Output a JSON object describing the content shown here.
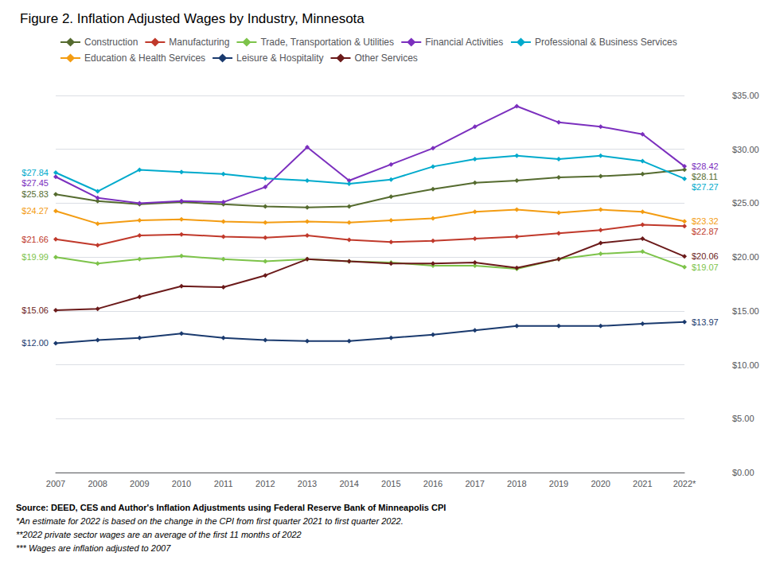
{
  "chart_data": {
    "type": "line",
    "title": "Figure 2. Inflation Adjusted Wages by Industry, Minnesota",
    "categories": [
      "2007",
      "2008",
      "2009",
      "2010",
      "2011",
      "2012",
      "2013",
      "2014",
      "2015",
      "2016",
      "2017",
      "2018",
      "2019",
      "2020",
      "2021",
      "2022*"
    ],
    "series": [
      {
        "name": "Construction",
        "color": "#556B2F",
        "values": [
          25.83,
          25.2,
          24.9,
          25.1,
          24.9,
          24.7,
          24.6,
          24.7,
          25.6,
          26.3,
          26.9,
          27.1,
          27.4,
          27.5,
          27.7,
          28.11
        ],
        "value_labels": [
          "$25.83",
          null,
          null,
          null,
          null,
          null,
          null,
          null,
          null,
          null,
          null,
          null,
          null,
          null,
          null,
          "$28.11"
        ]
      },
      {
        "name": "Manufacturing",
        "color": "#C0392B",
        "values": [
          21.66,
          21.1,
          22.0,
          22.1,
          21.9,
          21.8,
          22.0,
          21.6,
          21.4,
          21.5,
          21.7,
          21.9,
          22.2,
          22.5,
          23.0,
          22.87
        ],
        "value_labels": [
          "$21.66",
          null,
          null,
          null,
          null,
          null,
          null,
          null,
          null,
          null,
          null,
          null,
          null,
          null,
          null,
          "$22.87"
        ]
      },
      {
        "name": "Trade, Transportation & Utilities",
        "color": "#7DC34A",
        "values": [
          19.99,
          19.4,
          19.8,
          20.1,
          19.8,
          19.6,
          19.8,
          19.6,
          19.5,
          19.2,
          19.2,
          18.9,
          19.8,
          20.3,
          20.5,
          19.07
        ],
        "value_labels": [
          "$19.99",
          null,
          null,
          null,
          null,
          null,
          null,
          null,
          null,
          null,
          null,
          null,
          null,
          null,
          null,
          "$19.07"
        ]
      },
      {
        "name": "Financial Activities",
        "color": "#7B2FBE",
        "values": [
          27.45,
          25.5,
          25.0,
          25.2,
          25.1,
          26.5,
          30.2,
          27.1,
          28.6,
          30.1,
          32.1,
          34.0,
          32.5,
          32.1,
          31.4,
          28.42
        ],
        "value_labels": [
          "$27.45",
          null,
          null,
          null,
          null,
          null,
          null,
          null,
          null,
          null,
          null,
          null,
          null,
          null,
          null,
          "$28.42"
        ]
      },
      {
        "name": "Professional & Business Services",
        "color": "#00AACC",
        "values": [
          27.84,
          26.1,
          28.1,
          27.9,
          27.7,
          27.3,
          27.1,
          26.8,
          27.2,
          28.4,
          29.1,
          29.4,
          29.1,
          29.4,
          28.9,
          27.27
        ],
        "value_labels": [
          "$27.84",
          null,
          null,
          null,
          null,
          null,
          null,
          null,
          null,
          null,
          null,
          null,
          null,
          null,
          null,
          "$27.27"
        ]
      },
      {
        "name": "Education & Health Services",
        "color": "#F39C12",
        "values": [
          24.27,
          23.1,
          23.4,
          23.5,
          23.3,
          23.2,
          23.3,
          23.2,
          23.4,
          23.6,
          24.2,
          24.4,
          24.1,
          24.4,
          24.2,
          23.32
        ],
        "value_labels": [
          "$24.27",
          null,
          null,
          null,
          null,
          null,
          null,
          null,
          null,
          null,
          null,
          null,
          null,
          null,
          null,
          "$23.32"
        ]
      },
      {
        "name": "Leisure & Hospitality",
        "color": "#1A3A6E",
        "values": [
          12.0,
          12.3,
          12.5,
          12.9,
          12.5,
          12.3,
          12.2,
          12.2,
          12.5,
          12.8,
          13.2,
          13.6,
          13.6,
          13.6,
          13.8,
          13.97
        ],
        "value_labels": [
          "$12.00",
          null,
          null,
          null,
          null,
          null,
          null,
          null,
          null,
          null,
          null,
          null,
          null,
          null,
          null,
          "$13.97"
        ]
      },
      {
        "name": "Other Services",
        "color": "#6B1A1A",
        "values": [
          15.06,
          15.2,
          16.3,
          17.3,
          17.2,
          18.3,
          19.8,
          19.6,
          19.4,
          19.4,
          19.5,
          19.0,
          19.8,
          21.3,
          21.7,
          20.06
        ],
        "value_labels": [
          "$15.06",
          null,
          null,
          null,
          null,
          null,
          null,
          null,
          null,
          null,
          null,
          null,
          null,
          null,
          null,
          "$20.06"
        ]
      }
    ],
    "ylim": [
      0,
      35
    ],
    "yticks": [
      {
        "value": 0,
        "label": "$0.00"
      },
      {
        "value": 5,
        "label": "$5.00"
      },
      {
        "value": 10,
        "label": "$10.00"
      },
      {
        "value": 15,
        "label": "$15.00"
      },
      {
        "value": 20,
        "label": "$20.00"
      },
      {
        "value": 25,
        "label": "$25.00"
      },
      {
        "value": 30,
        "label": "$30.00"
      },
      {
        "value": 35,
        "label": "$35.00"
      }
    ],
    "grid": true,
    "legend": "top",
    "marker": "diamond",
    "footnotes": [
      "Source: DEED, CES and Author's Inflation Adjustments using Federal Reserve Bank of Minneapolis CPI",
      "*An estimate for 2022 is based on the change in the CPI from first quarter 2021 to first quarter 2022.",
      "**2022 private sector wages are an average of the first 11 months of 2022",
      "*** Wages are inflation adjusted to 2007"
    ]
  }
}
